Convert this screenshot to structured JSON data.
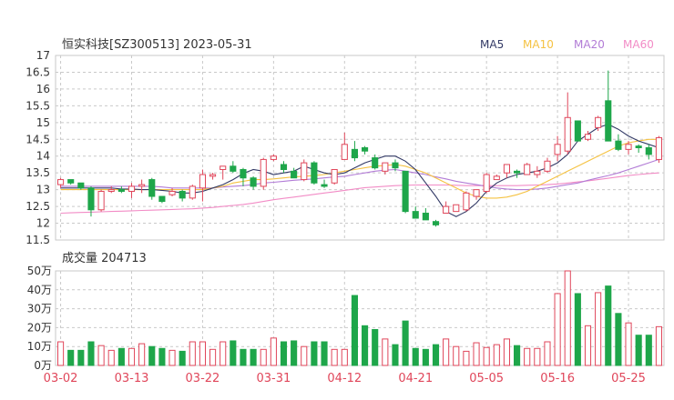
{
  "header": {
    "title": "恒实科技[SZ300513] 2023-05-31",
    "legend": [
      {
        "label": "MA5",
        "color": "#333a66"
      },
      {
        "label": "MA10",
        "color": "#f5c242"
      },
      {
        "label": "MA20",
        "color": "#b27cd6"
      },
      {
        "label": "MA60",
        "color": "#f28cc6"
      }
    ]
  },
  "colors": {
    "up": "#e0465a",
    "down": "#1ea64a",
    "grid": "#c9c9c9",
    "axis_text": "#333333",
    "date_text": "#e0465a"
  },
  "chart_data": [
    {
      "type": "candlestick",
      "ylim": [
        11.5,
        17
      ],
      "yticks": [
        "11.5",
        "12",
        "12.5",
        "13",
        "13.5",
        "14",
        "14.5",
        "15",
        "15.5",
        "16",
        "16.5",
        "17"
      ],
      "x_labels": [
        {
          "index": 0,
          "label": "03-02"
        },
        {
          "index": 7,
          "label": "03-13"
        },
        {
          "index": 14,
          "label": "03-22"
        },
        {
          "index": 21,
          "label": "03-31"
        },
        {
          "index": 28,
          "label": "04-12"
        },
        {
          "index": 35,
          "label": "04-21"
        },
        {
          "index": 42,
          "label": "05-05"
        },
        {
          "index": 49,
          "label": "05-16"
        },
        {
          "index": 56,
          "label": "05-25"
        }
      ],
      "ohlc": [
        [
          13.15,
          13.35,
          13.05,
          13.3
        ],
        [
          13.3,
          13.3,
          13.15,
          13.2
        ],
        [
          13.2,
          13.2,
          13.0,
          13.05
        ],
        [
          13.05,
          13.1,
          12.2,
          12.4
        ],
        [
          12.4,
          13.0,
          12.35,
          12.95
        ],
        [
          12.95,
          13.1,
          12.9,
          13.0
        ],
        [
          13.0,
          13.1,
          12.9,
          12.95
        ],
        [
          12.95,
          13.2,
          12.75,
          13.1
        ],
        [
          13.1,
          13.3,
          12.9,
          13.15
        ],
        [
          13.3,
          13.35,
          12.7,
          12.8
        ],
        [
          12.8,
          12.8,
          12.6,
          12.65
        ],
        [
          12.85,
          13.05,
          12.8,
          12.95
        ],
        [
          12.95,
          13.0,
          12.65,
          12.75
        ],
        [
          12.75,
          13.15,
          12.7,
          13.1
        ],
        [
          13.05,
          13.6,
          12.65,
          13.45
        ],
        [
          13.4,
          13.5,
          13.3,
          13.45
        ],
        [
          13.6,
          13.7,
          13.3,
          13.7
        ],
        [
          13.7,
          13.85,
          13.5,
          13.55
        ],
        [
          13.6,
          13.65,
          13.1,
          13.35
        ],
        [
          13.35,
          13.4,
          13.0,
          13.1
        ],
        [
          13.1,
          13.95,
          13.0,
          13.9
        ],
        [
          13.9,
          14.05,
          13.85,
          14.0
        ],
        [
          13.75,
          13.85,
          13.5,
          13.6
        ],
        [
          13.55,
          13.65,
          13.4,
          13.35
        ],
        [
          13.3,
          13.9,
          13.25,
          13.8
        ],
        [
          13.8,
          13.85,
          13.15,
          13.2
        ],
        [
          13.15,
          13.3,
          13.05,
          13.1
        ],
        [
          13.2,
          13.6,
          13.15,
          13.6
        ],
        [
          13.9,
          14.7,
          13.9,
          14.35
        ],
        [
          14.2,
          14.45,
          13.85,
          13.95
        ],
        [
          14.25,
          14.3,
          14.05,
          14.15
        ],
        [
          13.95,
          14.05,
          13.6,
          13.65
        ],
        [
          13.55,
          13.75,
          13.45,
          13.8
        ],
        [
          13.8,
          13.9,
          13.55,
          13.65
        ],
        [
          13.55,
          13.55,
          12.3,
          12.35
        ],
        [
          12.35,
          12.5,
          12.15,
          12.15
        ],
        [
          12.3,
          12.45,
          12.15,
          12.1
        ],
        [
          12.05,
          12.1,
          11.9,
          11.95
        ],
        [
          12.3,
          12.65,
          12.3,
          12.5
        ],
        [
          12.35,
          12.55,
          12.35,
          12.55
        ],
        [
          12.4,
          12.95,
          12.35,
          12.9
        ],
        [
          12.8,
          12.95,
          12.7,
          13.0
        ],
        [
          12.95,
          13.5,
          12.9,
          13.45
        ],
        [
          13.3,
          13.45,
          13.3,
          13.4
        ],
        [
          13.5,
          13.75,
          13.35,
          13.75
        ],
        [
          13.55,
          13.6,
          13.35,
          13.5
        ],
        [
          13.45,
          13.8,
          13.45,
          13.75
        ],
        [
          13.45,
          13.7,
          13.35,
          13.55
        ],
        [
          13.55,
          13.95,
          13.5,
          13.85
        ],
        [
          14.05,
          14.6,
          13.85,
          14.35
        ],
        [
          14.15,
          15.9,
          14.05,
          15.15
        ],
        [
          15.05,
          15.0,
          14.45,
          14.45
        ],
        [
          14.5,
          14.75,
          14.45,
          14.65
        ],
        [
          14.85,
          15.2,
          14.75,
          15.15
        ],
        [
          15.65,
          16.55,
          14.45,
          14.45
        ],
        [
          14.45,
          14.65,
          14.15,
          14.2
        ],
        [
          14.2,
          14.45,
          14.05,
          14.35
        ],
        [
          14.3,
          14.35,
          14.1,
          14.25
        ],
        [
          14.25,
          14.35,
          13.9,
          14.05
        ],
        [
          13.9,
          14.6,
          13.8,
          14.55
        ]
      ],
      "ma5": [
        13.05,
        13.05,
        13.05,
        13.05,
        13.05,
        13.05,
        13.02,
        13.02,
        13.0,
        13.0,
        12.98,
        12.95,
        12.9,
        12.9,
        12.95,
        13.05,
        13.15,
        13.3,
        13.48,
        13.6,
        13.55,
        13.45,
        13.5,
        13.55,
        13.7,
        13.6,
        13.5,
        13.45,
        13.5,
        13.65,
        13.8,
        13.9,
        14.0,
        14.0,
        13.85,
        13.6,
        13.2,
        12.8,
        12.35,
        12.2,
        12.35,
        12.6,
        12.95,
        13.2,
        13.35,
        13.45,
        13.5,
        13.55,
        13.65,
        13.8,
        14.05,
        14.45,
        14.65,
        14.85,
        14.95,
        14.8,
        14.6,
        14.45,
        14.35,
        14.25
      ],
      "ma10": [
        13.0,
        13.0,
        13.0,
        13.0,
        13.0,
        13.0,
        13.0,
        13.0,
        13.0,
        13.0,
        13.0,
        13.0,
        13.0,
        13.0,
        13.0,
        13.05,
        13.1,
        13.2,
        13.25,
        13.3,
        13.3,
        13.32,
        13.35,
        13.38,
        13.4,
        13.42,
        13.45,
        13.5,
        13.55,
        13.6,
        13.65,
        13.7,
        13.72,
        13.75,
        13.7,
        13.6,
        13.5,
        13.35,
        13.2,
        13.05,
        12.9,
        12.8,
        12.75,
        12.75,
        12.78,
        12.85,
        12.95,
        13.1,
        13.25,
        13.4,
        13.55,
        13.7,
        13.85,
        14.0,
        14.15,
        14.3,
        14.4,
        14.45,
        14.5,
        14.5
      ],
      "ma20": [
        13.1,
        13.1,
        13.1,
        13.1,
        13.1,
        13.1,
        13.1,
        13.1,
        13.1,
        13.1,
        13.08,
        13.05,
        13.05,
        13.05,
        13.05,
        13.05,
        13.08,
        13.1,
        13.12,
        13.15,
        13.2,
        13.22,
        13.25,
        13.28,
        13.3,
        13.32,
        13.35,
        13.38,
        13.4,
        13.45,
        13.5,
        13.55,
        13.58,
        13.6,
        13.55,
        13.5,
        13.45,
        13.38,
        13.32,
        13.25,
        13.2,
        13.15,
        13.1,
        13.05,
        13.02,
        13.0,
        13.0,
        13.02,
        13.05,
        13.1,
        13.15,
        13.2,
        13.28,
        13.35,
        13.42,
        13.5,
        13.6,
        13.7,
        13.8,
        13.9
      ],
      "ma60": [
        12.3,
        12.31,
        12.32,
        12.33,
        12.34,
        12.35,
        12.36,
        12.37,
        12.38,
        12.39,
        12.4,
        12.41,
        12.42,
        12.43,
        12.45,
        12.47,
        12.5,
        12.53,
        12.56,
        12.6,
        12.65,
        12.7,
        12.74,
        12.78,
        12.82,
        12.86,
        12.9,
        12.94,
        12.98,
        13.02,
        13.06,
        13.08,
        13.1,
        13.12,
        13.13,
        13.14,
        13.14,
        13.14,
        13.14,
        13.13,
        13.12,
        13.12,
        13.12,
        13.12,
        13.12,
        13.12,
        13.13,
        13.14,
        13.15,
        13.17,
        13.2,
        13.23,
        13.26,
        13.3,
        13.34,
        13.38,
        13.42,
        13.45,
        13.48,
        13.5
      ]
    },
    {
      "type": "bar",
      "title": "成交量 204713",
      "ylim": [
        0,
        50
      ],
      "yticks": [
        "0万",
        "10万",
        "20万",
        "30万",
        "40万",
        "50万"
      ],
      "values": [
        12.5,
        8,
        8,
        12.5,
        10.5,
        8,
        9,
        9,
        11.5,
        10,
        9,
        8,
        7.5,
        12.5,
        12.5,
        8.5,
        12.5,
        13,
        8.5,
        8.5,
        8.5,
        14.5,
        12.5,
        13,
        10,
        12.5,
        12.5,
        8.5,
        8.5,
        37,
        21,
        19,
        14,
        11,
        23.5,
        9,
        8.5,
        11,
        14,
        10,
        7.5,
        12,
        9.5,
        11,
        14,
        10.5,
        9,
        9,
        12.5,
        38,
        50,
        38,
        21,
        38.5,
        42,
        27.5,
        22.5,
        16,
        16,
        20.5
      ]
    }
  ]
}
